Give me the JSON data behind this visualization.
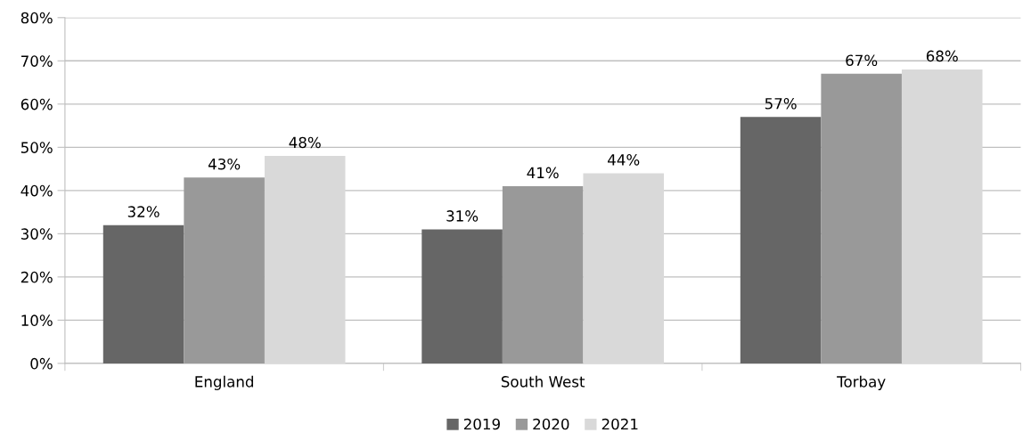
{
  "chart_data": {
    "type": "bar",
    "categories": [
      "England",
      "South West",
      "Torbay"
    ],
    "series": [
      {
        "name": "2019",
        "color": "#666666",
        "values": [
          32,
          31,
          57
        ],
        "value_labels": [
          "32%",
          "31%",
          "57%"
        ]
      },
      {
        "name": "2020",
        "color": "#999999",
        "values": [
          43,
          41,
          67
        ],
        "value_labels": [
          "43%",
          "41%",
          "67%"
        ]
      },
      {
        "name": "2021",
        "color": "#d9d9d9",
        "values": [
          48,
          44,
          68
        ],
        "value_labels": [
          "48%",
          "44%",
          "68%"
        ]
      }
    ],
    "ylim": [
      0,
      80
    ],
    "yticks": [
      {
        "value": 0,
        "label": "0%"
      },
      {
        "value": 10,
        "label": "10%"
      },
      {
        "value": 20,
        "label": "20%"
      },
      {
        "value": 30,
        "label": "30%"
      },
      {
        "value": 40,
        "label": "40%"
      },
      {
        "value": 50,
        "label": "50%"
      },
      {
        "value": 60,
        "label": "60%"
      },
      {
        "value": 70,
        "label": "70%"
      },
      {
        "value": 80,
        "label": "80%"
      }
    ],
    "grid": "y",
    "legend": "bottom"
  }
}
